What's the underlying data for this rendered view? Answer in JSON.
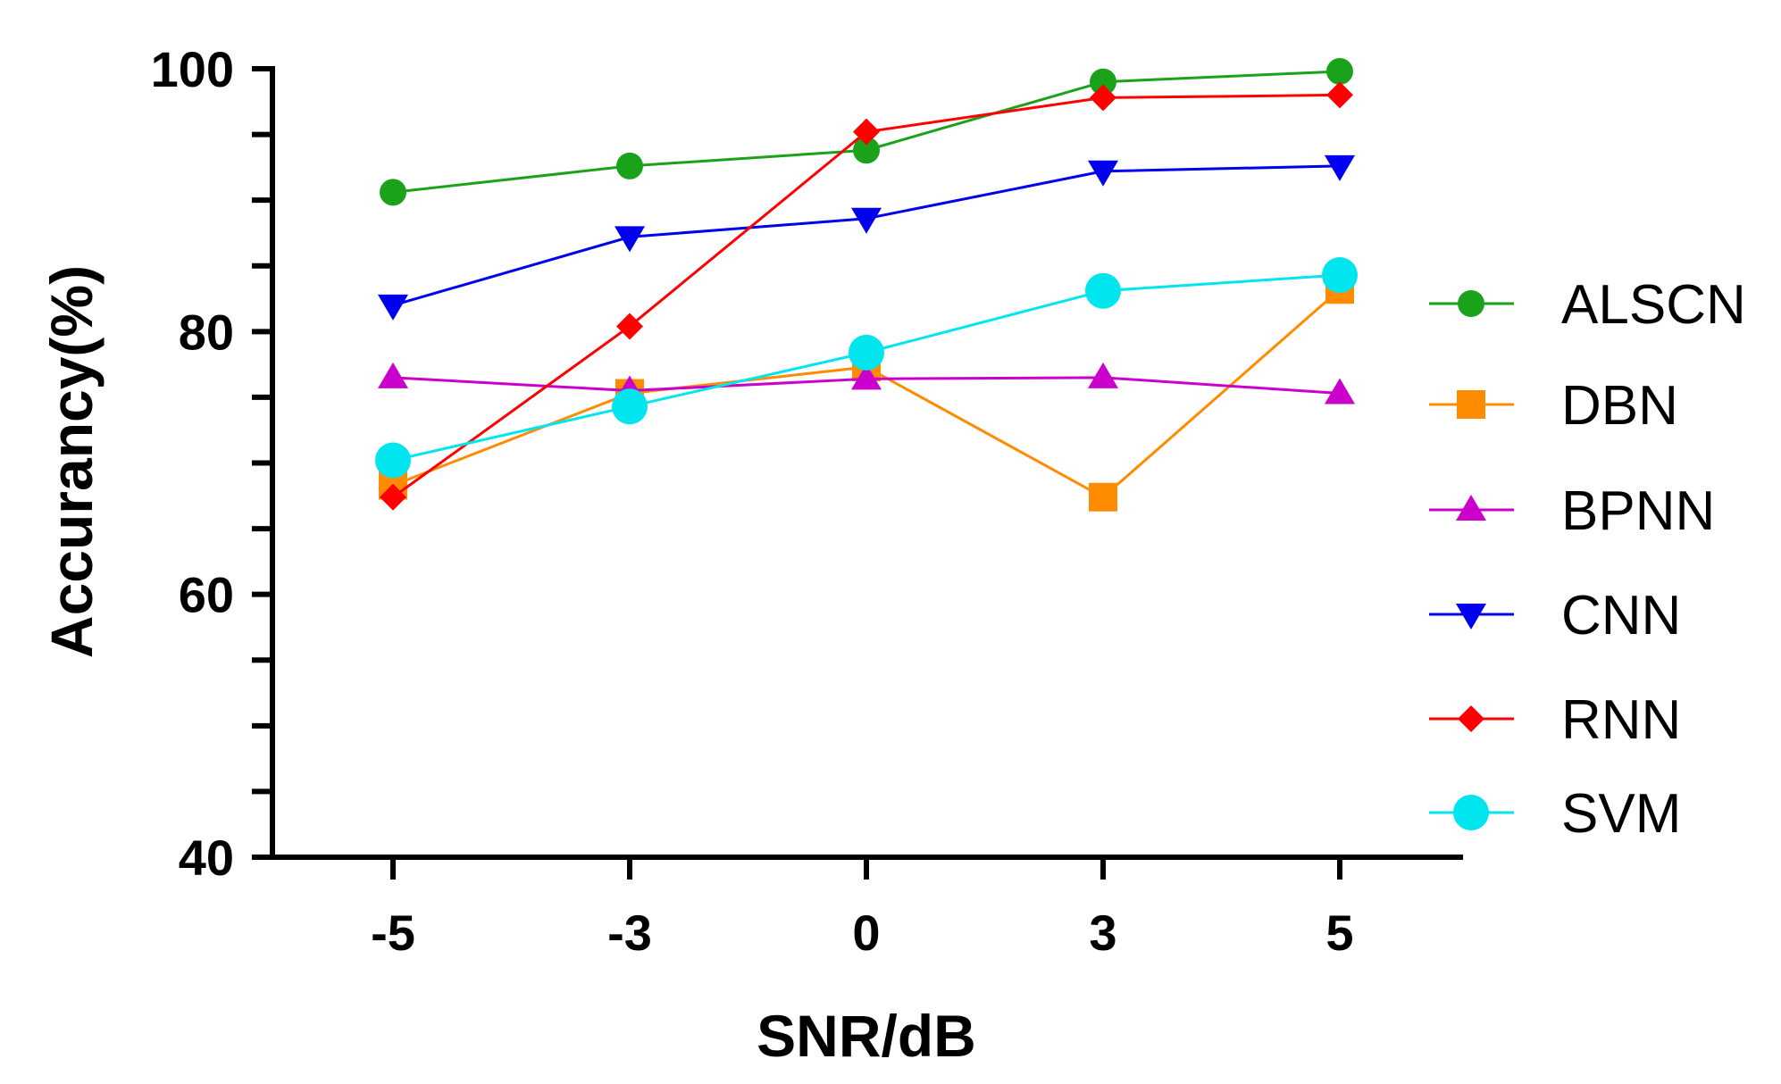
{
  "chart_data": {
    "type": "line",
    "title": "",
    "xlabel": "SNR/dB",
    "ylabel": "Accurancy(%)",
    "categories": [
      "-5",
      "-3",
      "0",
      "3",
      "5"
    ],
    "ylim": [
      40,
      100
    ],
    "yticks_major": [
      40,
      60,
      80,
      100
    ],
    "yticks_minor_step": 5,
    "grid": false,
    "legend_position": "right",
    "series": [
      {
        "name": "ALSCN",
        "color": "#1aa31a",
        "marker": "circle",
        "values": [
          90.6,
          92.6,
          93.8,
          99.0,
          99.8
        ]
      },
      {
        "name": "DBN",
        "color": "#ff8c00",
        "marker": "square",
        "values": [
          68.3,
          75.3,
          77.3,
          67.4,
          83.2
        ]
      },
      {
        "name": "BPNN",
        "color": "#cc00cc",
        "marker": "triangle-up",
        "values": [
          76.5,
          75.5,
          76.4,
          76.5,
          75.3
        ]
      },
      {
        "name": "CNN",
        "color": "#0000ee",
        "marker": "triangle-down",
        "values": [
          82.0,
          87.2,
          88.6,
          92.2,
          92.6
        ]
      },
      {
        "name": "RNN",
        "color": "#ff0000",
        "marker": "diamond",
        "values": [
          67.4,
          80.4,
          95.2,
          97.8,
          98.0
        ]
      },
      {
        "name": "SVM",
        "color": "#00e5ee",
        "marker": "circle-large",
        "values": [
          70.2,
          74.3,
          78.4,
          83.1,
          84.3
        ]
      }
    ]
  }
}
